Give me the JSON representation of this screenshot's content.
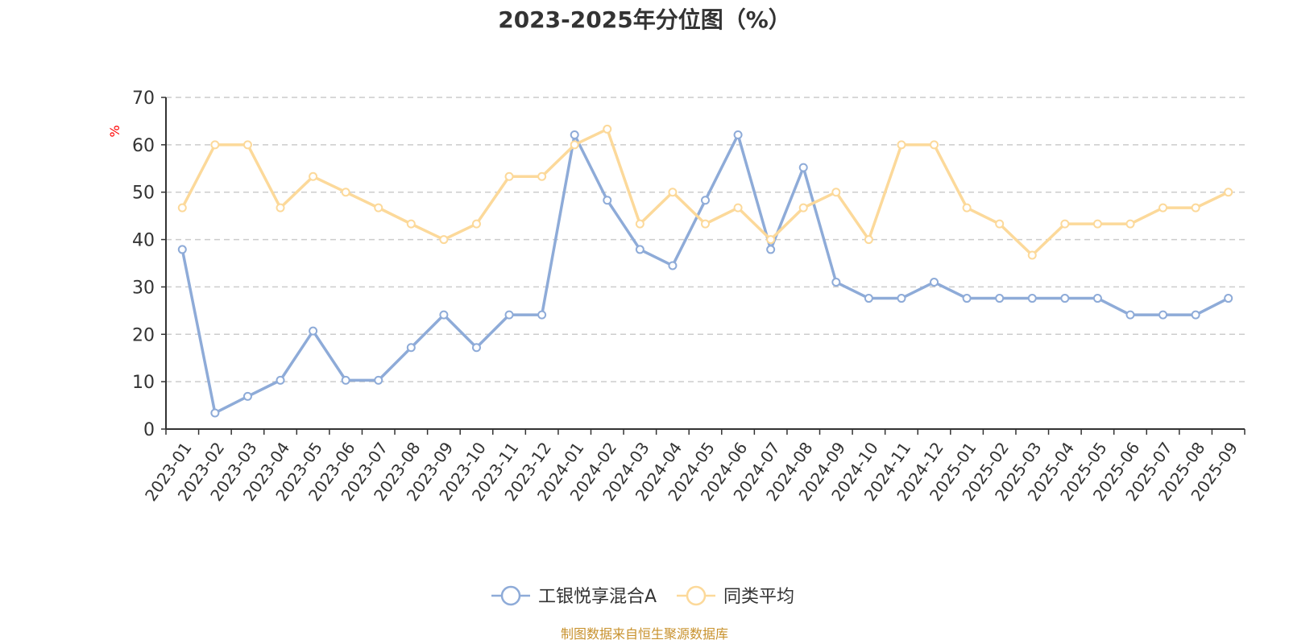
{
  "chart_data": {
    "type": "line",
    "title": "2023-2025年分位图（%）",
    "ylabel": "%",
    "xlabel": "",
    "ylim": [
      0,
      70
    ],
    "yticks": [
      0,
      10,
      20,
      30,
      40,
      50,
      60,
      70
    ],
    "grid": true,
    "legend_position": "bottom",
    "categories": [
      "2023-01",
      "2023-02",
      "2023-03",
      "2023-04",
      "2023-05",
      "2023-06",
      "2023-07",
      "2023-08",
      "2023-09",
      "2023-10",
      "2023-11",
      "2023-12",
      "2024-01",
      "2024-02",
      "2024-03",
      "2024-04",
      "2024-05",
      "2024-06",
      "2024-07",
      "2024-08",
      "2024-09",
      "2024-10",
      "2024-11",
      "2024-12",
      "2025-01",
      "2025-02",
      "2025-03",
      "2025-04",
      "2025-05",
      "2025-06",
      "2025-07",
      "2025-08",
      "2025-09"
    ],
    "series": [
      {
        "name": "工银悦享混合A",
        "color": "#8eabd8",
        "values": [
          37.9,
          3.4,
          6.9,
          10.3,
          20.7,
          10.3,
          10.3,
          17.2,
          24.1,
          17.2,
          24.1,
          24.1,
          62.1,
          48.3,
          37.9,
          34.5,
          48.3,
          62.1,
          37.9,
          55.2,
          31.0,
          27.6,
          27.6,
          31.0,
          27.6,
          27.6,
          27.6,
          27.6,
          27.6,
          24.1,
          24.1,
          24.1,
          27.6
        ]
      },
      {
        "name": "同类平均",
        "color": "#fcd99a",
        "values": [
          46.7,
          60.0,
          60.0,
          46.7,
          53.3,
          50.0,
          46.7,
          43.3,
          40.0,
          43.3,
          53.3,
          53.3,
          60.0,
          63.3,
          43.3,
          50.0,
          43.3,
          46.7,
          40.0,
          46.7,
          50.0,
          40.0,
          60.0,
          60.0,
          46.7,
          43.3,
          36.7,
          43.3,
          43.3,
          43.3,
          46.7,
          46.7,
          50.0
        ]
      }
    ],
    "source": "制图数据来自恒生聚源数据库"
  },
  "colors": {
    "axis": "#333333",
    "grid": "#cccccc",
    "unit": "#ff0000",
    "source": "#c8922e"
  }
}
